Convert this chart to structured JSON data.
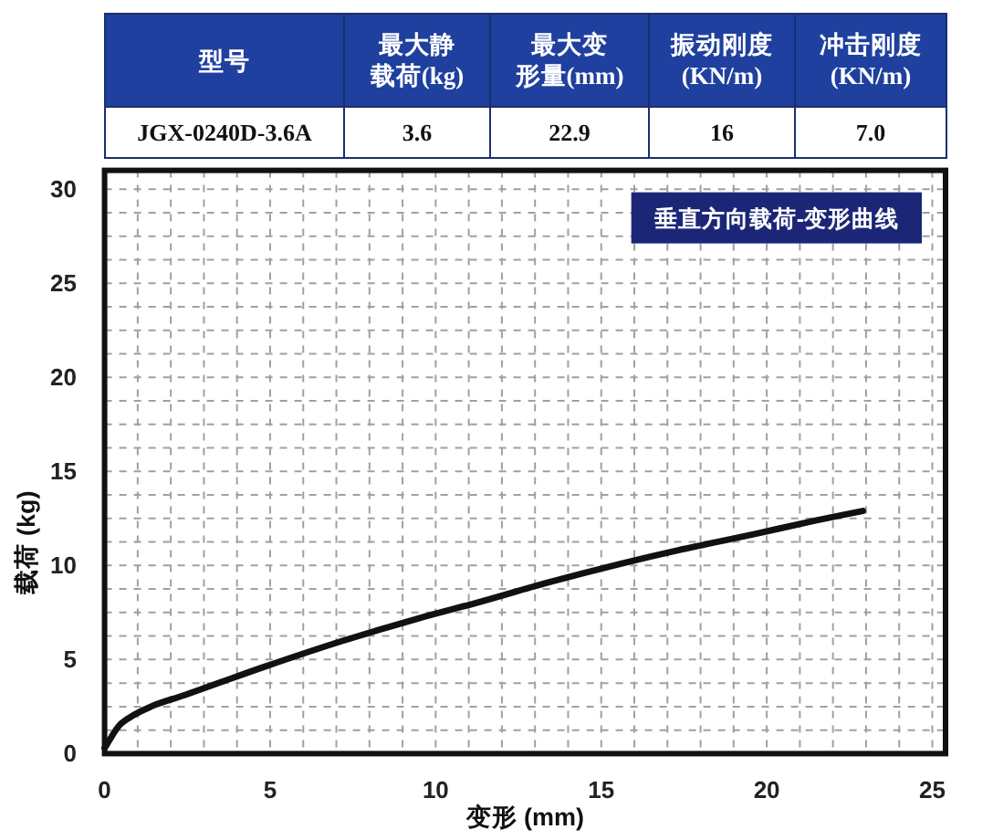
{
  "chart_data": [
    {
      "type": "other",
      "categories": [
        "型号",
        "最大静载荷(kg)",
        "最大变形量(mm)",
        "振动刚度(KN/m)",
        "冲击刚度(KN/m)"
      ],
      "value_labels": [
        "JGX-0240D-3.6A",
        "3.6",
        "22.9",
        "16",
        "7.0"
      ]
    },
    {
      "type": "line",
      "title": "垂直方向载荷-变形曲线",
      "xlabel": "变形 (mm)",
      "ylabel": "载荷 (kg)",
      "x": [
        0,
        0.5,
        1.4,
        2.4,
        4.8,
        7.2,
        9.5,
        11.2,
        13.4,
        15.6,
        17.3,
        19.7,
        21.5,
        22.9
      ],
      "series": [
        {
          "color": "#111111",
          "values": [
            0.3,
            1.6,
            2.5,
            3.1,
            4.6,
            6.0,
            7.2,
            8.0,
            9.1,
            10.1,
            10.8,
            11.7,
            12.4,
            12.9
          ]
        }
      ],
      "xlim": [
        0,
        25.4
      ],
      "ylim": [
        0,
        31
      ],
      "xticks": [
        0,
        {
          "value": 1,
          "label": null
        },
        {
          "value": 2,
          "label": null
        },
        {
          "value": 3,
          "label": null
        },
        {
          "value": 4,
          "label": null
        },
        5,
        {
          "value": 6,
          "label": null
        },
        {
          "value": 7,
          "label": null
        },
        {
          "value": 8,
          "label": null
        },
        {
          "value": 9,
          "label": null
        },
        10,
        {
          "value": 11,
          "label": null
        },
        {
          "value": 12,
          "label": null
        },
        {
          "value": 13,
          "label": null
        },
        {
          "value": 14,
          "label": null
        },
        15,
        {
          "value": 16,
          "label": null
        },
        {
          "value": 17,
          "label": null
        },
        {
          "value": 18,
          "label": null
        },
        {
          "value": 19,
          "label": null
        },
        20,
        {
          "value": 21,
          "label": null
        },
        {
          "value": 22,
          "label": null
        },
        {
          "value": 23,
          "label": null
        },
        {
          "value": 24,
          "label": null
        },
        25
      ],
      "yticks": [
        0,
        {
          "value": 1.25,
          "label": null
        },
        {
          "value": 2.5,
          "label": null
        },
        {
          "value": 3.75,
          "label": null
        },
        5,
        {
          "value": 6.25,
          "label": null
        },
        {
          "value": 7.5,
          "label": null
        },
        {
          "value": 8.75,
          "label": null
        },
        10,
        {
          "value": 11.25,
          "label": null
        },
        {
          "value": 12.5,
          "label": null
        },
        {
          "value": 13.75,
          "label": null
        },
        15,
        {
          "value": 16.25,
          "label": null
        },
        {
          "value": 17.5,
          "label": null
        },
        {
          "value": 18.75,
          "label": null
        },
        20,
        {
          "value": 21.25,
          "label": null
        },
        {
          "value": 22.5,
          "label": null
        },
        {
          "value": 23.75,
          "label": null
        },
        25,
        {
          "value": 26.25,
          "label": null
        },
        {
          "value": 27.5,
          "label": null
        },
        {
          "value": 28.75,
          "label": null
        },
        30
      ],
      "grid": true,
      "line_style": "solid",
      "marker": "none"
    }
  ]
}
